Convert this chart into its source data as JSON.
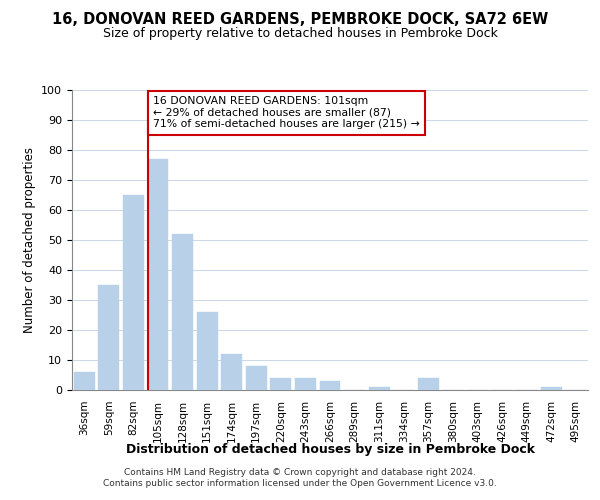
{
  "title": "16, DONOVAN REED GARDENS, PEMBROKE DOCK, SA72 6EW",
  "subtitle": "Size of property relative to detached houses in Pembroke Dock",
  "xlabel": "Distribution of detached houses by size in Pembroke Dock",
  "ylabel": "Number of detached properties",
  "bar_labels": [
    "36sqm",
    "59sqm",
    "82sqm",
    "105sqm",
    "128sqm",
    "151sqm",
    "174sqm",
    "197sqm",
    "220sqm",
    "243sqm",
    "266sqm",
    "289sqm",
    "311sqm",
    "334sqm",
    "357sqm",
    "380sqm",
    "403sqm",
    "426sqm",
    "449sqm",
    "472sqm",
    "495sqm"
  ],
  "bar_values": [
    6,
    35,
    65,
    77,
    52,
    26,
    12,
    8,
    4,
    4,
    3,
    0,
    1,
    0,
    4,
    0,
    0,
    0,
    0,
    1,
    0
  ],
  "bar_color": "#b8d0e8",
  "vline_x": 3,
  "vline_color": "#cc0000",
  "ylim": [
    0,
    100
  ],
  "yticks": [
    0,
    10,
    20,
    30,
    40,
    50,
    60,
    70,
    80,
    90,
    100
  ],
  "annotation_title": "16 DONOVAN REED GARDENS: 101sqm",
  "annotation_line1": "← 29% of detached houses are smaller (87)",
  "annotation_line2": "71% of semi-detached houses are larger (215) →",
  "footer_line1": "Contains HM Land Registry data © Crown copyright and database right 2024.",
  "footer_line2": "Contains public sector information licensed under the Open Government Licence v3.0."
}
